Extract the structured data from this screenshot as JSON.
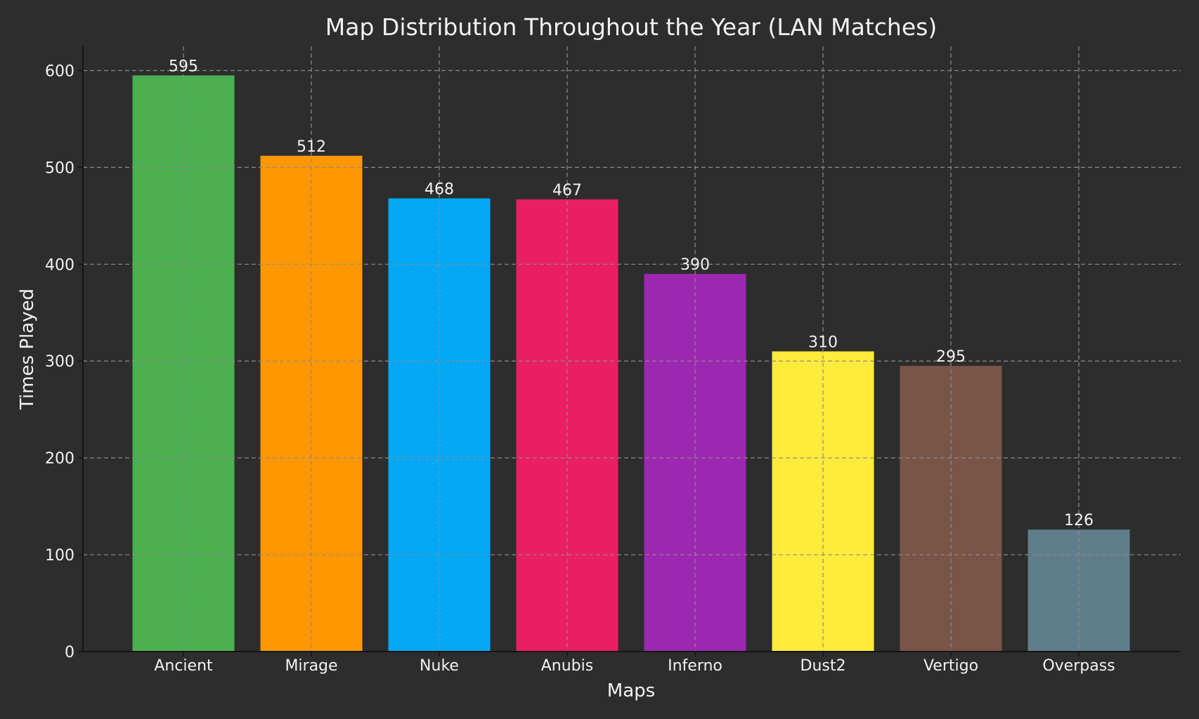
{
  "chart_data": {
    "type": "bar",
    "title": "Map Distribution Throughout the Year (LAN Matches)",
    "xlabel": "Maps",
    "ylabel": "Times Played",
    "categories": [
      "Ancient",
      "Mirage",
      "Nuke",
      "Anubis",
      "Inferno",
      "Dust2",
      "Vertigo",
      "Overpass"
    ],
    "values": [
      595,
      512,
      468,
      467,
      390,
      310,
      295,
      126
    ],
    "data_labels": [
      "595",
      "512",
      "468",
      "467",
      "390",
      "310",
      "295",
      "126"
    ],
    "colors": [
      "#4caf50",
      "#ff9800",
      "#03a9f4",
      "#e91e63",
      "#9c27b0",
      "#ffeb3b",
      "#795548",
      "#607d8b"
    ],
    "ylim": [
      0,
      625
    ],
    "yticks": [
      0,
      100,
      200,
      300,
      400,
      500,
      600
    ],
    "ytick_labels": [
      "0",
      "100",
      "200",
      "300",
      "400",
      "500",
      "600"
    ],
    "grid": true,
    "background": "#2d2d2d"
  }
}
